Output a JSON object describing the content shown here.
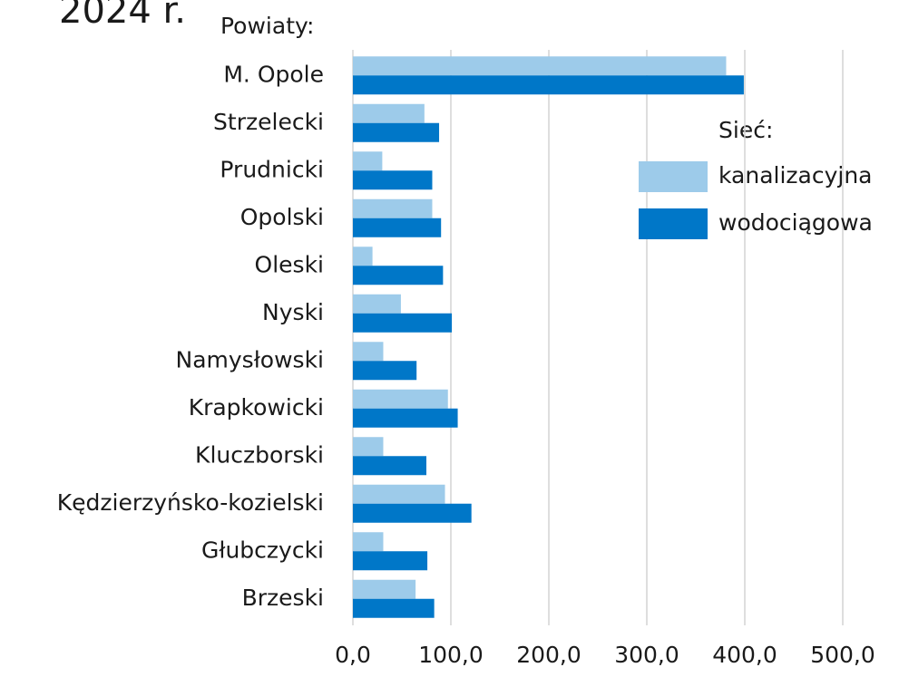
{
  "chart_data": {
    "type": "hbar",
    "title": "2024 r.",
    "y_label": "Powiaty:",
    "legend_title": "Sieć:",
    "categories": [
      "M. Opole",
      "Strzelecki",
      "Prudnicki",
      "Opolski",
      "Oleski",
      "Nyski",
      "Namysłowski",
      "Krapkowicki",
      "Kluczborski",
      "Kędzierzyńsko-kozielski",
      "Głubczycki",
      "Brzeski"
    ],
    "series": [
      {
        "name": "kanalizacyjna",
        "color": "#9dcbea",
        "values": [
          381,
          73,
          30,
          81,
          20,
          49,
          31,
          97,
          31,
          94,
          31,
          64
        ]
      },
      {
        "name": "wodociągowa",
        "color": "#0077c8",
        "values": [
          399,
          88,
          81,
          90,
          92,
          101,
          65,
          107,
          75,
          121,
          76,
          83
        ]
      }
    ],
    "xlim": [
      0,
      500
    ],
    "xticks": [
      {
        "value": 0,
        "label": "0,0"
      },
      {
        "value": 100,
        "label": "100,0"
      },
      {
        "value": 200,
        "label": "200,0"
      },
      {
        "value": 300,
        "label": "300,0"
      },
      {
        "value": 400,
        "label": "400,0"
      },
      {
        "value": 500,
        "label": "500,0"
      }
    ],
    "grid": true
  }
}
